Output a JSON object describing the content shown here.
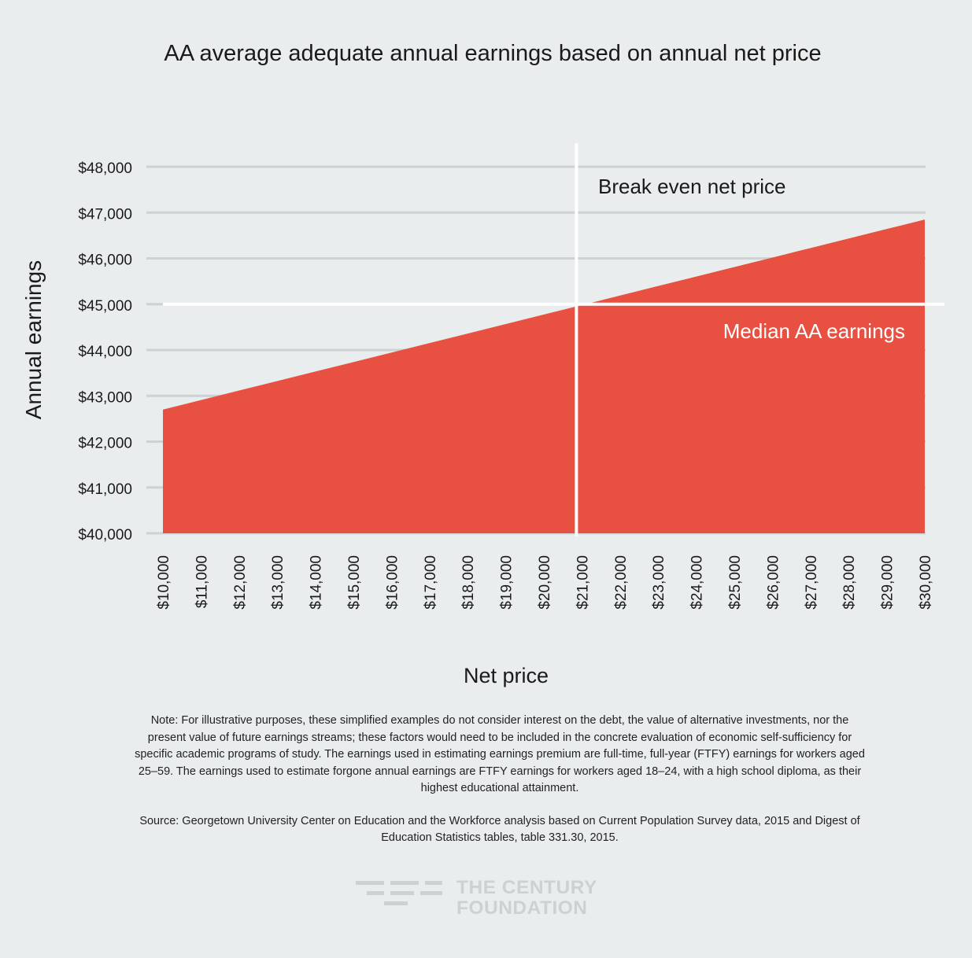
{
  "chart_data": {
    "type": "area",
    "title": "AA average adequate annual earnings based on annual net price",
    "xlabel": "Net price",
    "ylabel": "Annual earnings",
    "x": [
      10000,
      11000,
      12000,
      13000,
      14000,
      15000,
      16000,
      17000,
      18000,
      19000,
      20000,
      21000,
      22000,
      23000,
      24000,
      25000,
      26000,
      27000,
      28000,
      29000,
      30000
    ],
    "x_tick_labels": [
      "$10,000",
      "$11,000",
      "$12,000",
      "$13,000",
      "$14,000",
      "$15,000",
      "$16,000",
      "$17,000",
      "$18,000",
      "$19,000",
      "$20,000",
      "$21,000",
      "$22,000",
      "$23,000",
      "$24,000",
      "$25,000",
      "$26,000",
      "$27,000",
      "$28,000",
      "$29,000",
      "$30,000"
    ],
    "y": [
      42700,
      42907,
      43115,
      43322,
      43530,
      43737,
      43944,
      44152,
      44359,
      44567,
      44774,
      44981,
      45189,
      45396,
      45604,
      45811,
      46018,
      46226,
      46433,
      46641,
      46848
    ],
    "y_tick_values": [
      40000,
      41000,
      42000,
      43000,
      44000,
      45000,
      46000,
      47000,
      48000
    ],
    "y_tick_labels": [
      "$40,000",
      "$41,000",
      "$42,000",
      "$43,000",
      "$44,000",
      "$45,000",
      "$46,000",
      "$47,000",
      "$48,000"
    ],
    "ylim": [
      40000,
      48000
    ],
    "xlim": [
      10000,
      30000
    ],
    "grid": "horizontal",
    "fill_color": "#e85142",
    "reference_lines": {
      "horizontal": {
        "y": 45000,
        "label": "Median AA earnings"
      },
      "vertical": {
        "x": 21000,
        "label": "Break even net price"
      }
    }
  },
  "notes": {
    "note": "Note: For illustrative purposes, these simplified examples do not consider interest on the debt, the value of alternative investments, nor the present value of future earnings streams; these factors would need to be included in the concrete evaluation of economic self-sufficiency for specific academic programs of study. The earnings used in estimating earnings premium are full-time, full-year (FTFY) earnings for workers aged 25–59. The earnings used to estimate forgone annual earnings are FTFY earnings for workers aged 18–24, with a high school diploma, as their highest educational attainment.",
    "source": "Source: Georgetown University Center on Education and the Workforce analysis based on Current Population Survey data, 2015 and Digest of Education Statistics tables, table 331.30, 2015."
  },
  "logo": {
    "line1": "THE CENTURY",
    "line2": "FOUNDATION"
  },
  "colors": {
    "background": "#e9edee",
    "area": "#e85142",
    "grid": "#cdd2d3",
    "reference": "#ffffff"
  }
}
